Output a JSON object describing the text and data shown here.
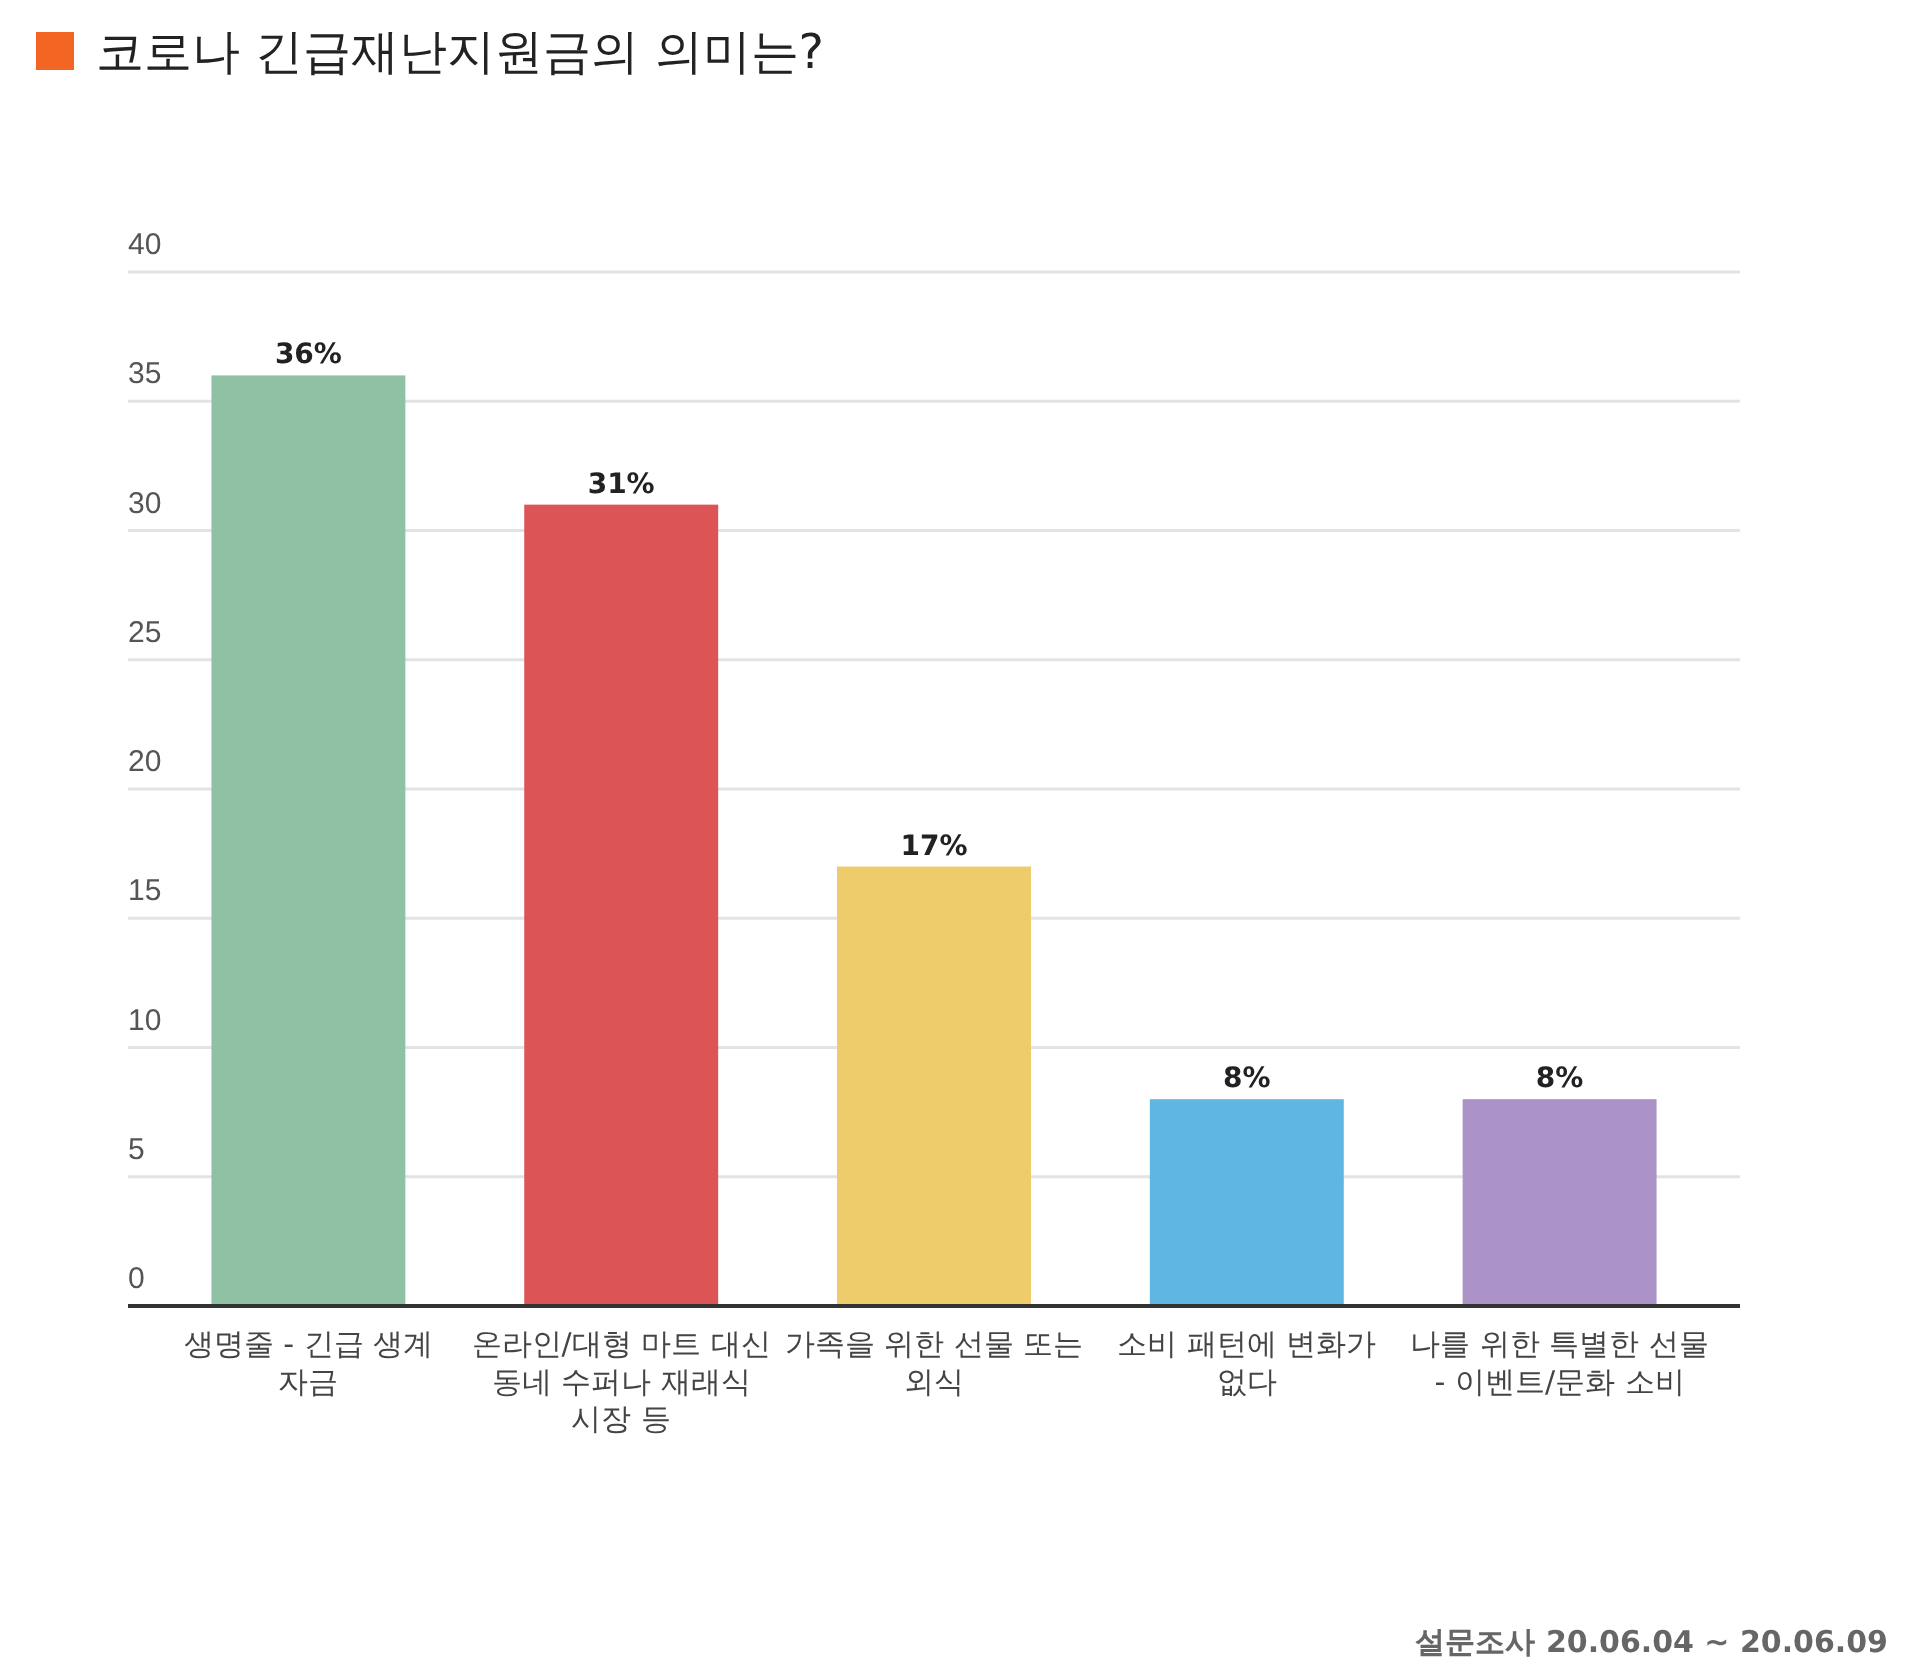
{
  "chart_data": {
    "type": "bar",
    "title": "코로나 긴급재난지원금의 의미는?",
    "categories": [
      "생명줄 - 긴급 생계 자금",
      "온라인/대형 마트 대신 동네 수퍼나 재래식 시장 등",
      "가족을 위한 선물 또는 외식",
      "소비 패턴에 변화가 없다",
      "나를 위한 특별한 선물 - 이벤트/문화 소비"
    ],
    "values": [
      36,
      31,
      17,
      8,
      8
    ],
    "colors": [
      "#8fc2a5",
      "#dc5455",
      "#eecb6b",
      "#60b6e3",
      "#ab93c8"
    ],
    "value_labels": [
      "36%",
      "31%",
      "17%",
      "8%",
      "8%"
    ],
    "ylim": [
      0,
      40
    ],
    "yticks": [
      0,
      5,
      10,
      15,
      20,
      25,
      30,
      35,
      40
    ],
    "grid": "y",
    "annotations": [
      "설문조사 20.06.04 ~ 20.06.09"
    ]
  }
}
